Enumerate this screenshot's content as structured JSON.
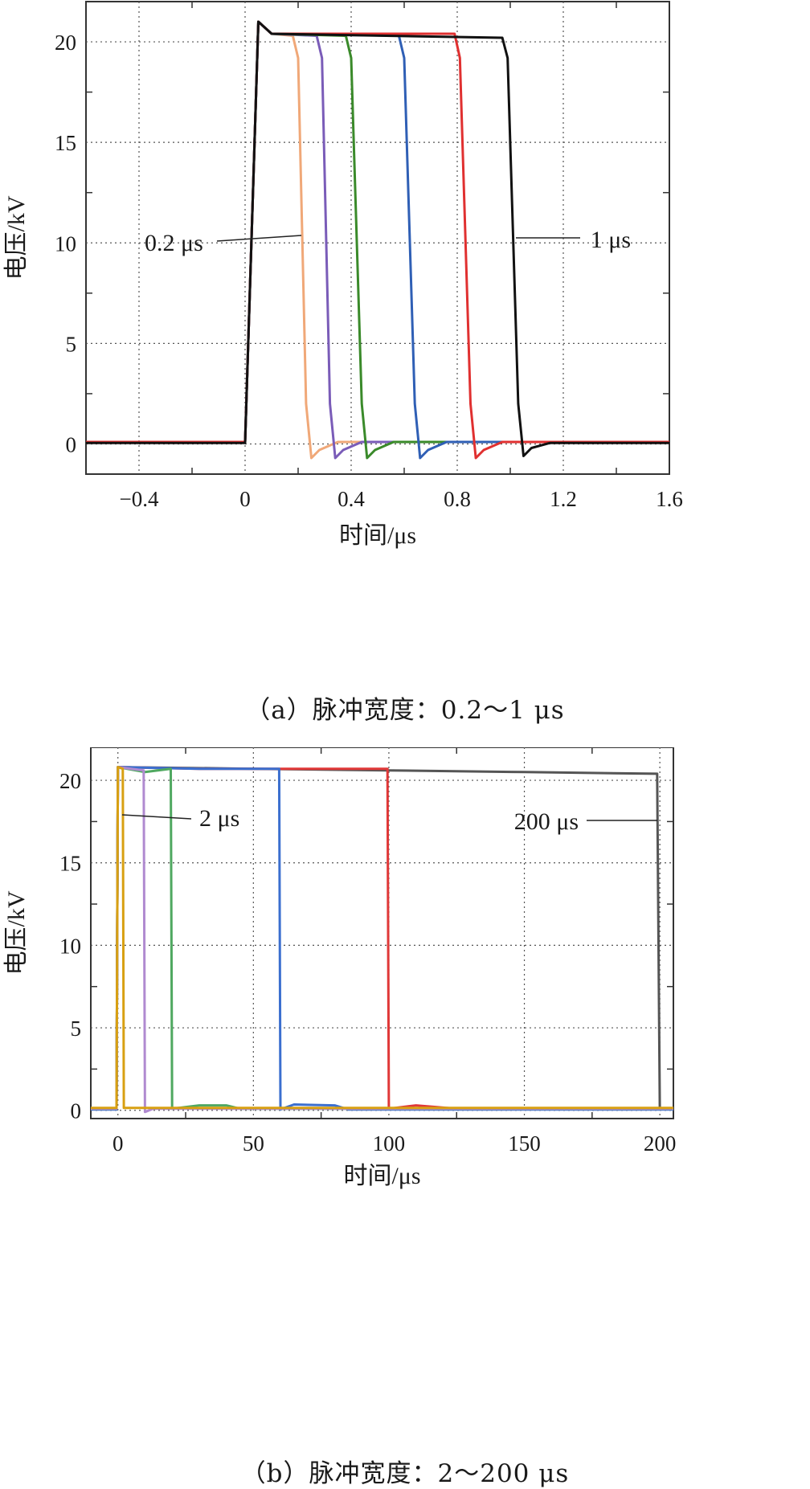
{
  "chart_data": [
    {
      "type": "line",
      "title": "",
      "caption": "（a）脉冲宽度：0.2～1 μs",
      "xlabel": "时间/μs",
      "ylabel": "电压/kV",
      "xlim": [
        -0.6,
        1.6
      ],
      "ylim": [
        -1.5,
        22
      ],
      "xticks": [
        -0.4,
        0,
        0.4,
        0.8,
        1.2,
        1.6
      ],
      "xtick_labels": [
        "−0.4",
        "0",
        "0.4",
        "0.8",
        "1.2",
        "1.6"
      ],
      "yticks": [
        0,
        5,
        10,
        15,
        20
      ],
      "ytick_labels": [
        "0",
        "5",
        "10",
        "15",
        "20"
      ],
      "grid": true,
      "annotations": [
        {
          "text": "0.2 μs",
          "x": 0.22,
          "y": 10
        },
        {
          "text": "1 μs",
          "x": 1.02,
          "y": 10
        }
      ],
      "series": [
        {
          "color": "#f0a878",
          "values": [
            [
              -0.6,
              0.1
            ],
            [
              0,
              0.1
            ],
            [
              0.05,
              21
            ],
            [
              0.1,
              20.4
            ],
            [
              0.18,
              20.3
            ],
            [
              0.2,
              19.2
            ],
            [
              0.23,
              2.0
            ],
            [
              0.25,
              -0.7
            ],
            [
              0.28,
              -0.3
            ],
            [
              0.35,
              0.1
            ],
            [
              1.6,
              0.1
            ]
          ]
        },
        {
          "color": "#7a5cb8",
          "values": [
            [
              -0.6,
              0.1
            ],
            [
              0,
              0.1
            ],
            [
              0.05,
              21
            ],
            [
              0.1,
              20.4
            ],
            [
              0.27,
              20.3
            ],
            [
              0.29,
              19.2
            ],
            [
              0.32,
              2.0
            ],
            [
              0.34,
              -0.7
            ],
            [
              0.37,
              -0.3
            ],
            [
              0.44,
              0.1
            ],
            [
              1.6,
              0.1
            ]
          ]
        },
        {
          "color": "#3a8a2a",
          "values": [
            [
              -0.6,
              0.1
            ],
            [
              0,
              0.1
            ],
            [
              0.05,
              21
            ],
            [
              0.1,
              20.4
            ],
            [
              0.38,
              20.3
            ],
            [
              0.4,
              19.2
            ],
            [
              0.44,
              2.0
            ],
            [
              0.46,
              -0.7
            ],
            [
              0.49,
              -0.3
            ],
            [
              0.56,
              0.1
            ],
            [
              1.6,
              0.1
            ]
          ]
        },
        {
          "color": "#2f5fb5",
          "values": [
            [
              -0.6,
              0.1
            ],
            [
              0,
              0.1
            ],
            [
              0.05,
              21
            ],
            [
              0.1,
              20.4
            ],
            [
              0.58,
              20.3
            ],
            [
              0.6,
              19.2
            ],
            [
              0.64,
              2.0
            ],
            [
              0.66,
              -0.7
            ],
            [
              0.69,
              -0.3
            ],
            [
              0.76,
              0.1
            ],
            [
              1.6,
              0.1
            ]
          ]
        },
        {
          "color": "#e03030",
          "values": [
            [
              -0.6,
              0.1
            ],
            [
              0,
              0.1
            ],
            [
              0.05,
              21
            ],
            [
              0.1,
              20.4
            ],
            [
              0.79,
              20.4
            ],
            [
              0.81,
              19.2
            ],
            [
              0.85,
              2.0
            ],
            [
              0.87,
              -0.7
            ],
            [
              0.9,
              -0.3
            ],
            [
              0.97,
              0.1
            ],
            [
              1.6,
              0.1
            ]
          ]
        },
        {
          "color": "#111111",
          "values": [
            [
              -0.6,
              0.05
            ],
            [
              0,
              0.05
            ],
            [
              0.05,
              21
            ],
            [
              0.1,
              20.4
            ],
            [
              0.97,
              20.2
            ],
            [
              0.99,
              19.2
            ],
            [
              1.03,
              2.0
            ],
            [
              1.05,
              -0.6
            ],
            [
              1.08,
              -0.2
            ],
            [
              1.15,
              0.05
            ],
            [
              1.6,
              0.05
            ]
          ]
        }
      ]
    },
    {
      "type": "line",
      "title": "",
      "caption": "（b）脉冲宽度：2～200 μs",
      "xlabel": "时间/μs",
      "ylabel": "电压/kV",
      "xlim": [
        -10,
        205
      ],
      "ylim": [
        -0.5,
        22
      ],
      "xticks": [
        0,
        50,
        100,
        150,
        200
      ],
      "xtick_labels": [
        "0",
        "50",
        "100",
        "150",
        "200"
      ],
      "yticks": [
        0,
        5,
        10,
        15,
        20
      ],
      "ytick_labels": [
        "0",
        "5",
        "10",
        "15",
        "20"
      ],
      "grid": true,
      "annotations": [
        {
          "text": "2 μs",
          "x": 2,
          "y": 14
        },
        {
          "text": "200 μs",
          "x": 200,
          "y": 14
        }
      ],
      "series": [
        {
          "color": "#555555",
          "values": [
            [
              -10,
              0.1
            ],
            [
              -0.5,
              0.1
            ],
            [
              0,
              20.8
            ],
            [
              50,
              20.7
            ],
            [
              100,
              20.6
            ],
            [
              150,
              20.5
            ],
            [
              199,
              20.4
            ],
            [
              200,
              0.1
            ],
            [
              205,
              0.1
            ]
          ]
        },
        {
          "color": "#e03838",
          "values": [
            [
              -10,
              0.1
            ],
            [
              -0.5,
              0.1
            ],
            [
              0,
              20.8
            ],
            [
              30,
              20.7
            ],
            [
              60,
              20.7
            ],
            [
              99.5,
              20.7
            ],
            [
              100,
              0.1
            ],
            [
              110,
              0.3
            ],
            [
              125,
              0.1
            ],
            [
              205,
              0.1
            ]
          ]
        },
        {
          "color": "#3b6fcf",
          "values": [
            [
              -10,
              0.05
            ],
            [
              -0.5,
              0.05
            ],
            [
              0,
              20.8
            ],
            [
              30,
              20.7
            ],
            [
              59.5,
              20.7
            ],
            [
              60,
              0.05
            ],
            [
              65,
              0.35
            ],
            [
              80,
              0.3
            ],
            [
              85,
              0.05
            ],
            [
              205,
              0.05
            ]
          ]
        },
        {
          "color": "#4fa860",
          "values": [
            [
              -10,
              0.1
            ],
            [
              -0.5,
              0.1
            ],
            [
              0,
              20.8
            ],
            [
              10,
              20.5
            ],
            [
              19.5,
              20.7
            ],
            [
              20,
              0.1
            ],
            [
              30,
              0.3
            ],
            [
              40,
              0.3
            ],
            [
              45,
              0.1
            ],
            [
              205,
              0.1
            ]
          ]
        },
        {
          "color": "#b08ad0",
          "values": [
            [
              -10,
              0.1
            ],
            [
              -0.5,
              0.1
            ],
            [
              0,
              20.8
            ],
            [
              9.5,
              20.6
            ],
            [
              10,
              -0.1
            ],
            [
              13,
              0.1
            ],
            [
              205,
              0.1
            ]
          ]
        },
        {
          "color": "#d8a012",
          "values": [
            [
              -10,
              0.15
            ],
            [
              -0.5,
              0.15
            ],
            [
              0,
              20.8
            ],
            [
              1.8,
              20.7
            ],
            [
              2.2,
              0.15
            ],
            [
              205,
              0.15
            ]
          ]
        }
      ]
    }
  ]
}
